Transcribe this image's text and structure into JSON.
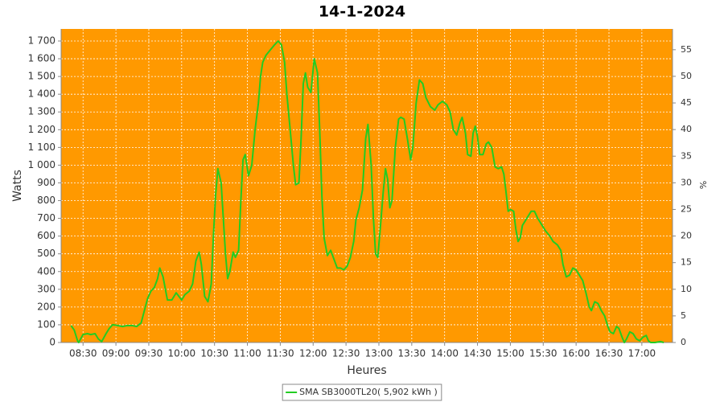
{
  "chart_data": {
    "type": "line",
    "title": "14-1-2024",
    "xlabel": "Heures",
    "ylabel": "Watts",
    "y2label": "%",
    "background": "#ff9900",
    "grid": true,
    "legend": "bottom",
    "xlim": [
      "08:10",
      "17:28"
    ],
    "xticks": [
      "08:30",
      "09:00",
      "09:30",
      "10:00",
      "10:30",
      "11:00",
      "11:30",
      "12:00",
      "12:30",
      "13:00",
      "13:30",
      "14:00",
      "14:30",
      "15:00",
      "15:30",
      "16:00",
      "16:30",
      "17:00"
    ],
    "ylim": [
      0,
      1768
    ],
    "yticks": [
      0,
      100,
      200,
      300,
      400,
      500,
      600,
      700,
      800,
      900,
      {
        "value": 1000,
        "label": "1 000"
      },
      {
        "value": 1100,
        "label": "1 100"
      },
      {
        "value": 1200,
        "label": "1 200"
      },
      {
        "value": 1300,
        "label": "1 300"
      },
      {
        "value": 1400,
        "label": "1 400"
      },
      {
        "value": 1500,
        "label": "1 500"
      },
      {
        "value": 1600,
        "label": "1 600"
      },
      {
        "value": 1700,
        "label": "1 700"
      }
    ],
    "y2lim": [
      0,
      58.9
    ],
    "y2ticks": [
      0,
      5,
      10,
      15,
      20,
      25,
      30,
      35,
      40,
      45,
      50,
      55
    ],
    "x": [
      "08:19",
      "08:22",
      "08:25",
      "08:26",
      "08:30",
      "08:34",
      "08:37",
      "08:41",
      "08:44",
      "08:47",
      "08:51",
      "08:54",
      "08:57",
      "09:02",
      "09:06",
      "09:10",
      "09:15",
      "09:19",
      "09:23",
      "09:26",
      "09:29",
      "09:32",
      "09:35",
      "09:38",
      "09:40",
      "09:43",
      "09:47",
      "09:51",
      "09:55",
      "10:00",
      "10:03",
      "10:07",
      "10:10",
      "10:13",
      "10:16",
      "10:18",
      "10:21",
      "10:24",
      "10:27",
      "10:29",
      "10:31",
      "10:33",
      "10:36",
      "10:38",
      "10:40",
      "10:42",
      "10:44",
      "10:47",
      "10:49",
      "10:52",
      "10:54",
      "10:56",
      "10:58",
      "11:01",
      "11:04",
      "11:07",
      "11:10",
      "11:12",
      "11:14",
      "11:17",
      "11:21",
      "11:25",
      "11:28",
      "11:31",
      "11:34",
      "11:36",
      "11:39",
      "11:42",
      "11:44",
      "11:47",
      "11:49",
      "11:51",
      "11:53",
      "11:55",
      "11:58",
      "12:00",
      "12:01",
      "12:04",
      "12:06",
      "12:08",
      "12:10",
      "12:13",
      "12:16",
      "12:19",
      "12:22",
      "12:25",
      "12:28",
      "12:31",
      "12:34",
      "12:37",
      "12:39",
      "12:42",
      "12:45",
      "12:48",
      "12:50",
      "12:53",
      "12:55",
      "12:57",
      "12:59",
      "13:01",
      "13:04",
      "13:06",
      "13:08",
      "13:10",
      "13:12",
      "13:15",
      "13:18",
      "13:20",
      "13:23",
      "13:26",
      "13:29",
      "13:31",
      "13:34",
      "13:37",
      "13:40",
      "13:43",
      "13:47",
      "13:51",
      "13:54",
      "13:58",
      "14:02",
      "14:05",
      "14:08",
      "14:11",
      "14:14",
      "14:16",
      "14:19",
      "14:21",
      "14:24",
      "14:26",
      "14:28",
      "14:30",
      "14:32",
      "14:35",
      "14:38",
      "14:40",
      "14:43",
      "14:46",
      "14:49",
      "14:52",
      "14:54",
      "14:56",
      "14:58",
      "15:00",
      "15:03",
      "15:05",
      "15:07",
      "15:09",
      "15:11",
      "15:14",
      "15:16",
      "15:19",
      "15:22",
      "15:25",
      "15:28",
      "15:32",
      "15:36",
      "15:39",
      "15:43",
      "15:46",
      "15:48",
      "15:51",
      "15:54",
      "15:57",
      "16:00",
      "16:03",
      "16:06",
      "16:09",
      "16:12",
      "16:14",
      "16:17",
      "16:20",
      "16:23",
      "16:26",
      "16:29",
      "16:31",
      "16:34",
      "16:37",
      "16:39",
      "16:42",
      "16:44",
      "16:46",
      "16:49",
      "16:52",
      "16:55",
      "16:58",
      "17:01",
      "17:04",
      "17:06",
      "17:08",
      "17:12",
      "17:17",
      "17:20"
    ],
    "series": [
      {
        "name": "SMA SB3000TL20( 5,902 kWh )",
        "color": "#22cc22",
        "values": [
          95,
          70,
          10,
          0,
          45,
          50,
          45,
          50,
          20,
          5,
          50,
          80,
          100,
          95,
          90,
          95,
          95,
          90,
          110,
          180,
          250,
          290,
          310,
          360,
          420,
          370,
          240,
          240,
          280,
          240,
          270,
          290,
          330,
          460,
          510,
          440,
          260,
          230,
          330,
          600,
          830,
          980,
          900,
          700,
          500,
          360,
          400,
          510,
          480,
          520,
          800,
          1030,
          1060,
          940,
          1000,
          1200,
          1350,
          1500,
          1580,
          1620,
          1650,
          1680,
          1700,
          1680,
          1580,
          1400,
          1200,
          1000,
          890,
          900,
          1150,
          1460,
          1520,
          1440,
          1410,
          1540,
          1600,
          1520,
          1200,
          820,
          590,
          490,
          520,
          470,
          420,
          420,
          410,
          430,
          480,
          570,
          690,
          760,
          860,
          1150,
          1230,
          1000,
          700,
          500,
          480,
          620,
          850,
          980,
          920,
          760,
          800,
          1100,
          1260,
          1270,
          1260,
          1150,
          1030,
          1100,
          1350,
          1480,
          1460,
          1380,
          1330,
          1310,
          1340,
          1360,
          1340,
          1300,
          1200,
          1170,
          1240,
          1270,
          1180,
          1060,
          1050,
          1180,
          1220,
          1160,
          1060,
          1060,
          1120,
          1130,
          1100,
          990,
          980,
          990,
          950,
          850,
          740,
          750,
          740,
          640,
          570,
          590,
          660,
          690,
          710,
          740,
          740,
          700,
          670,
          630,
          600,
          570,
          550,
          520,
          440,
          370,
          380,
          420,
          410,
          380,
          350,
          280,
          200,
          180,
          230,
          220,
          180,
          150,
          90,
          60,
          50,
          90,
          80,
          30,
          0,
          20,
          60,
          50,
          20,
          10,
          30,
          40,
          10,
          0,
          0,
          5,
          0
        ]
      }
    ]
  }
}
